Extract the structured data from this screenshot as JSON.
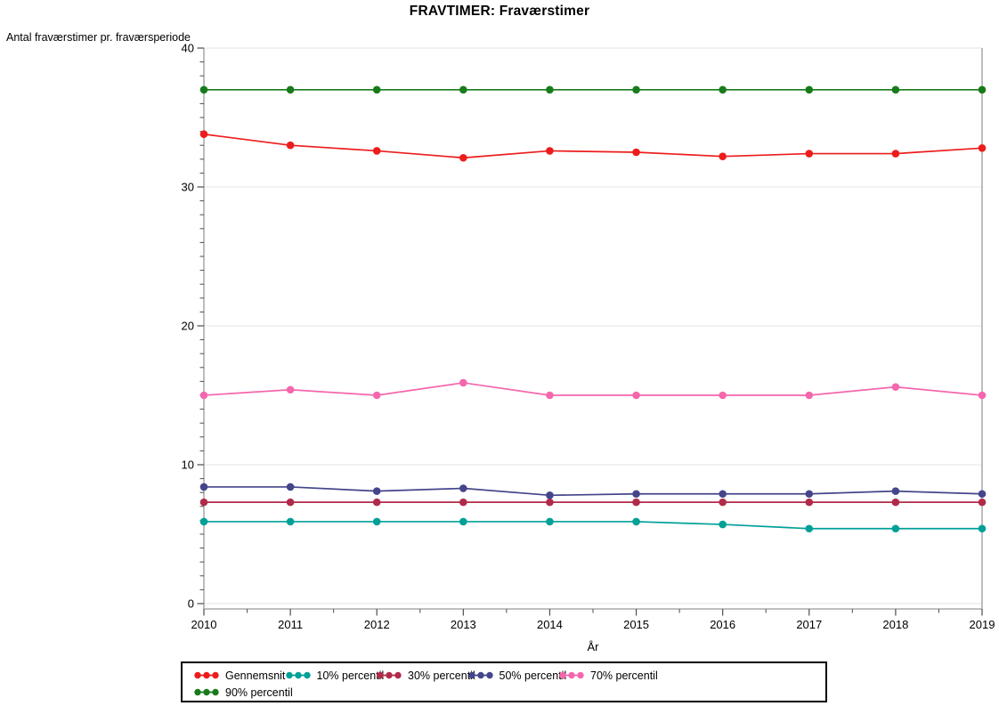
{
  "title": "FRAVTIMER: Fraværstimer",
  "chart_data": {
    "type": "line",
    "title": "FRAVTIMER: Fraværstimer",
    "ylabel": "Antal fraværstimer pr. fraværsperiode",
    "xlabel": "År",
    "x": [
      2010,
      2011,
      2012,
      2013,
      2014,
      2015,
      2016,
      2017,
      2018,
      2019
    ],
    "ylim": [
      0,
      40
    ],
    "yticks": [
      0,
      10,
      20,
      30,
      40
    ],
    "y_minor_tick_step": 1,
    "x_minor_ticks": "between-years",
    "grid": "horizontal-major-lightgray",
    "legend_position": "bottom-box",
    "legend_rows": [
      [
        "Gennemsnit",
        "10% percentil",
        "30% percentil",
        "50% percentil",
        "70% percentil"
      ],
      [
        "90% percentil"
      ]
    ],
    "series": [
      {
        "name": "Gennemsnit",
        "color": "#ED1C1C",
        "values": [
          33.8,
          33.0,
          32.6,
          32.1,
          32.6,
          32.5,
          32.2,
          32.4,
          32.4,
          32.8
        ]
      },
      {
        "name": "10% percentil",
        "color": "#00A097",
        "values": [
          5.9,
          5.9,
          5.9,
          5.9,
          5.9,
          5.9,
          5.7,
          5.4,
          5.4,
          5.4
        ]
      },
      {
        "name": "30% percentil",
        "color": "#B12A49",
        "values": [
          7.3,
          7.3,
          7.3,
          7.3,
          7.3,
          7.3,
          7.3,
          7.3,
          7.3,
          7.3
        ]
      },
      {
        "name": "50% percentil",
        "color": "#44458B",
        "values": [
          8.4,
          8.4,
          8.1,
          8.3,
          7.8,
          7.9,
          7.9,
          7.9,
          8.1,
          7.9
        ]
      },
      {
        "name": "70% percentil",
        "color": "#F566AD",
        "values": [
          15.0,
          15.4,
          15.0,
          15.9,
          15.0,
          15.0,
          15.0,
          15.0,
          15.6,
          15.0
        ]
      },
      {
        "name": "90% percentil",
        "color": "#187B1B",
        "values": [
          37.0,
          37.0,
          37.0,
          37.0,
          37.0,
          37.0,
          37.0,
          37.0,
          37.0,
          37.0
        ]
      }
    ],
    "colors": {
      "gridline": "#E3E3E3",
      "axis_frame": "#999999",
      "tick": "#4D4D4D",
      "text": "#000000"
    }
  }
}
